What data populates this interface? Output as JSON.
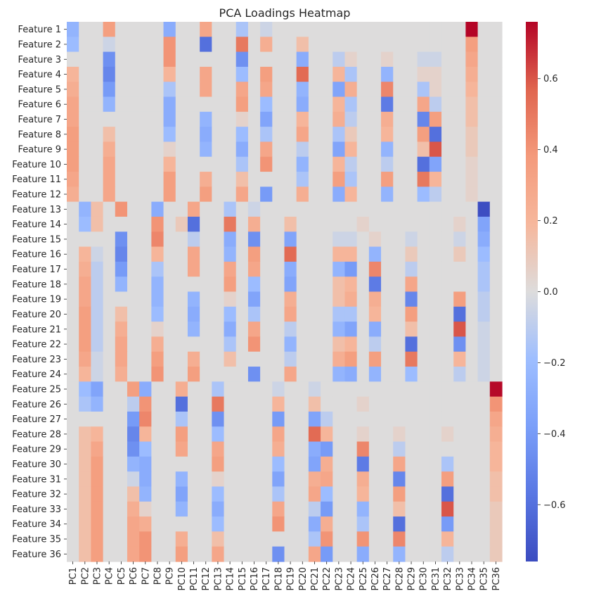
{
  "chart_data": {
    "type": "heatmap",
    "title": "PCA Loadings Heatmap",
    "xlabel": "",
    "ylabel": "",
    "colormap": "coolwarm",
    "vmin": -0.76,
    "vmax": 0.76,
    "colorbar_ticks": [
      0.6,
      0.4,
      0.2,
      0.0,
      -0.2,
      -0.4,
      -0.6
    ],
    "colorbar_tick_labels": [
      "0.6",
      "0.4",
      "0.2",
      "0.0",
      "−0.2",
      "−0.4",
      "−0.6"
    ],
    "x_labels": [
      "PC1",
      "PC2",
      "PC3",
      "PC4",
      "PC5",
      "PC6",
      "PC7",
      "PC8",
      "PC9",
      "PC10",
      "PC11",
      "PC12",
      "PC13",
      "PC14",
      "PC15",
      "PC16",
      "PC17",
      "PC18",
      "PC19",
      "PC20",
      "PC21",
      "PC22",
      "PC23",
      "PC24",
      "PC25",
      "PC26",
      "PC27",
      "PC28",
      "PC29",
      "PC30",
      "PC31",
      "PC32",
      "PC33",
      "PC34",
      "PC35",
      "PC36"
    ],
    "y_labels": [
      "Feature 1",
      "Feature 2",
      "Feature 3",
      "Feature 4",
      "Feature 5",
      "Feature 6",
      "Feature 7",
      "Feature 8",
      "Feature 9",
      "Feature 10",
      "Feature 11",
      "Feature 12",
      "Feature 13",
      "Feature 14",
      "Feature 15",
      "Feature 16",
      "Feature 17",
      "Feature 18",
      "Feature 19",
      "Feature 20",
      "Feature 21",
      "Feature 22",
      "Feature 23",
      "Feature 24",
      "Feature 25",
      "Feature 26",
      "Feature 27",
      "Feature 28",
      "Feature 29",
      "Feature 30",
      "Feature 31",
      "Feature 32",
      "Feature 33",
      "Feature 34",
      "Feature 35",
      "Feature 36"
    ],
    "values": [
      [
        -0.25,
        0,
        0,
        0.35,
        0,
        0,
        0,
        0,
        -0.3,
        0,
        0,
        0.3,
        0,
        0,
        -0.15,
        0,
        -0.05,
        0,
        0,
        0,
        0,
        0,
        0,
        0,
        0,
        0,
        0,
        0,
        0,
        0,
        0,
        0,
        0,
        0.76,
        0,
        0
      ],
      [
        -0.2,
        0,
        0,
        -0.05,
        0,
        0,
        0,
        0,
        0.4,
        0,
        0,
        -0.6,
        0,
        0,
        0.5,
        0,
        0.25,
        0,
        0,
        0.15,
        0,
        0,
        0,
        0,
        0,
        0,
        0,
        0,
        0,
        0,
        0,
        0,
        0,
        0.35,
        0,
        0
      ],
      [
        0,
        0,
        0,
        -0.45,
        0,
        0,
        0,
        0,
        0.4,
        0,
        0,
        0,
        0,
        0,
        -0.45,
        0,
        0,
        0,
        0,
        -0.3,
        0,
        0,
        -0.1,
        0.05,
        0,
        0,
        0.05,
        0,
        0,
        -0.05,
        -0.05,
        0,
        0,
        0.3,
        0,
        0
      ],
      [
        0.2,
        0,
        0,
        -0.5,
        0,
        0,
        0,
        0,
        0.2,
        0,
        0,
        0.3,
        0,
        0,
        -0.2,
        0,
        0.35,
        0,
        0,
        0.55,
        0,
        0,
        0.2,
        -0.15,
        0,
        0,
        -0.25,
        0,
        0,
        0.05,
        0.05,
        0,
        0,
        0.25,
        0,
        0
      ],
      [
        0.25,
        0,
        0,
        -0.4,
        0,
        0,
        0,
        0,
        -0.15,
        0,
        0,
        0.3,
        0,
        0,
        0.3,
        0,
        0.3,
        0,
        0,
        -0.25,
        0,
        0,
        -0.35,
        0.25,
        0,
        0,
        0.45,
        0,
        0,
        -0.15,
        0.05,
        0,
        0,
        0.2,
        0,
        0
      ],
      [
        0.3,
        0,
        0,
        -0.25,
        0,
        0,
        0,
        0,
        -0.3,
        0,
        0,
        0,
        0,
        0,
        0.35,
        0,
        -0.2,
        0,
        0,
        -0.3,
        0,
        0,
        0.2,
        -0.15,
        0,
        0,
        -0.55,
        0,
        0,
        0.3,
        -0.1,
        0,
        0,
        0.15,
        0,
        0
      ],
      [
        0.3,
        0,
        0,
        0,
        0,
        0,
        0,
        0,
        -0.3,
        0,
        0,
        -0.25,
        0,
        0,
        0.05,
        0,
        -0.35,
        0,
        0,
        0.2,
        0,
        0,
        0.25,
        -0.1,
        0,
        0,
        0.25,
        0,
        0,
        -0.5,
        0.35,
        0,
        0,
        0.15,
        0,
        0
      ],
      [
        0.35,
        0,
        0,
        0.15,
        0,
        0,
        0,
        0,
        -0.2,
        0,
        0,
        -0.3,
        0,
        0,
        -0.2,
        0,
        -0.15,
        0,
        0,
        0.3,
        0,
        0,
        -0.15,
        0.1,
        0,
        0,
        0.2,
        0,
        0,
        0.35,
        -0.6,
        0,
        0,
        0.1,
        0,
        0
      ],
      [
        0.35,
        0,
        0,
        0.25,
        0,
        0,
        0,
        0,
        0.05,
        0,
        0,
        -0.25,
        0,
        0,
        -0.3,
        0,
        0.3,
        0,
        0,
        -0.1,
        0,
        0,
        -0.35,
        0.2,
        0,
        0,
        -0.25,
        0,
        0,
        0.15,
        0.6,
        0,
        0,
        0.1,
        0,
        0
      ],
      [
        0.35,
        0,
        0,
        0.3,
        0,
        0,
        0,
        0,
        0.2,
        0,
        0,
        0,
        0,
        0,
        -0.15,
        0,
        0.4,
        0,
        0,
        -0.25,
        0,
        0,
        0.2,
        -0.1,
        0,
        0,
        -0.1,
        0,
        0,
        -0.6,
        -0.35,
        0,
        0,
        0.05,
        0,
        0
      ],
      [
        0.3,
        0,
        0,
        0.3,
        0,
        0,
        0,
        0,
        0.35,
        0,
        0,
        0.25,
        0,
        0,
        0.15,
        0,
        0,
        0,
        0,
        -0.15,
        0,
        0,
        0.35,
        -0.15,
        0,
        0,
        0.35,
        0,
        0,
        0.5,
        0.2,
        0,
        0,
        0.05,
        0,
        0
      ],
      [
        0.25,
        0,
        0,
        0.3,
        0,
        0,
        0,
        0,
        0.35,
        0,
        0,
        0.35,
        0,
        0,
        0.3,
        0,
        -0.4,
        0,
        0,
        0.25,
        0,
        0,
        -0.3,
        0.2,
        0,
        0,
        -0.25,
        0,
        0,
        -0.2,
        -0.1,
        0,
        0,
        0.05,
        0,
        0
      ],
      [
        0,
        -0.25,
        0.15,
        0,
        0.4,
        0,
        0,
        -0.3,
        0,
        0,
        0.3,
        0,
        0,
        -0.15,
        0,
        -0.05,
        0,
        0,
        0,
        0,
        0,
        0,
        0,
        0,
        0,
        0,
        0,
        0,
        0,
        0,
        0,
        0,
        0,
        0,
        -0.75,
        0
      ],
      [
        0,
        -0.2,
        0.15,
        0,
        0,
        0,
        0,
        0.4,
        0,
        0.1,
        -0.6,
        0,
        0,
        0.5,
        0,
        0.25,
        0,
        0,
        0.15,
        0,
        0,
        0,
        0,
        0,
        0.05,
        0,
        0,
        0,
        0,
        0,
        0,
        0,
        0.05,
        0,
        -0.35,
        0
      ],
      [
        0,
        0,
        0,
        0,
        -0.45,
        0,
        0,
        0.45,
        0,
        0,
        -0.1,
        0,
        0,
        -0.3,
        0,
        -0.45,
        0,
        0,
        -0.35,
        0,
        0,
        0,
        -0.05,
        -0.05,
        0,
        0.05,
        0,
        0,
        -0.05,
        0,
        0,
        0,
        -0.05,
        0,
        -0.3,
        0
      ],
      [
        0,
        0.2,
        -0.05,
        0,
        -0.5,
        0,
        0,
        0.2,
        0,
        0,
        0.3,
        0,
        0,
        -0.25,
        0,
        0.35,
        0,
        0,
        0.55,
        0,
        0,
        0,
        0.2,
        0.2,
        0,
        -0.25,
        0,
        0,
        0.1,
        0,
        0,
        0,
        0.1,
        0,
        -0.2,
        0
      ],
      [
        0,
        0.25,
        -0.1,
        0,
        -0.4,
        0,
        0,
        -0.15,
        0,
        0,
        0.3,
        0,
        0,
        0.3,
        0,
        0.3,
        0,
        0,
        -0.3,
        0,
        0,
        0,
        -0.25,
        -0.4,
        0,
        0.45,
        0,
        0,
        -0.1,
        0,
        0,
        0,
        0,
        0,
        -0.15,
        0
      ],
      [
        0,
        0.3,
        -0.1,
        0,
        -0.25,
        0,
        0,
        -0.25,
        0,
        0,
        0,
        0,
        0,
        0.35,
        0,
        -0.2,
        0,
        0,
        -0.35,
        0,
        0,
        0,
        0.15,
        0.2,
        0,
        -0.55,
        0,
        0,
        0.3,
        0,
        0,
        0,
        0,
        0,
        -0.15,
        0
      ],
      [
        0,
        0.3,
        -0.1,
        0,
        0,
        0,
        0,
        -0.25,
        0,
        0,
        -0.25,
        0,
        0,
        0.05,
        0,
        -0.35,
        0,
        0,
        0.25,
        0,
        0,
        0,
        0.15,
        0.25,
        0,
        0.25,
        0,
        0,
        -0.5,
        0,
        0,
        0,
        0.35,
        0,
        -0.1,
        0
      ],
      [
        0,
        0.35,
        -0.1,
        0,
        0.15,
        0,
        0,
        -0.2,
        0,
        0,
        -0.3,
        0,
        0,
        -0.2,
        0,
        -0.15,
        0,
        0,
        0.3,
        0,
        0,
        0,
        -0.15,
        -0.15,
        0,
        0.2,
        0,
        0,
        0.35,
        0,
        0,
        0,
        -0.6,
        0,
        -0.1,
        0
      ],
      [
        0,
        0.35,
        -0.1,
        0,
        0.25,
        0,
        0,
        0.05,
        0,
        0,
        -0.25,
        0,
        0,
        -0.3,
        0,
        0.3,
        0,
        0,
        -0.1,
        0,
        0,
        0,
        -0.25,
        -0.35,
        0,
        -0.3,
        0,
        0,
        0.15,
        0,
        0,
        0,
        0.6,
        0,
        -0.05,
        0
      ],
      [
        0,
        0.35,
        -0.1,
        0,
        0.3,
        0,
        0,
        0.25,
        0,
        0,
        0,
        0,
        0,
        -0.15,
        0,
        0.4,
        0,
        0,
        -0.25,
        0,
        0,
        0,
        0.15,
        0.2,
        0,
        -0.1,
        0,
        0,
        -0.6,
        0,
        0,
        0,
        -0.45,
        0,
        -0.05,
        0
      ],
      [
        0,
        0.3,
        -0.05,
        0,
        0.3,
        0,
        0,
        0.35,
        0,
        0,
        0.25,
        0,
        0,
        0.15,
        0,
        0,
        0,
        0,
        -0.1,
        0,
        0,
        0,
        0.25,
        0.35,
        0,
        0.35,
        0,
        0,
        0.5,
        0,
        0,
        0,
        0.2,
        0,
        -0.05,
        0
      ],
      [
        0,
        0.2,
        -0.05,
        0,
        0.25,
        0,
        0,
        0.4,
        0,
        0,
        0.35,
        0,
        0,
        0,
        0,
        -0.45,
        0,
        0,
        0.3,
        0,
        0,
        0,
        -0.25,
        -0.3,
        0,
        -0.25,
        0,
        0,
        -0.2,
        0,
        0,
        0,
        -0.1,
        0,
        -0.05,
        0
      ],
      [
        0,
        -0.2,
        -0.35,
        0,
        0,
        0.35,
        -0.3,
        0,
        0,
        0.25,
        0,
        0,
        -0.15,
        0,
        0,
        0,
        0,
        -0.05,
        0,
        0,
        -0.05,
        0,
        0,
        0,
        0,
        0,
        0,
        0,
        0,
        0,
        0,
        0,
        0,
        0,
        0,
        0.75
      ],
      [
        0,
        -0.15,
        -0.25,
        0,
        0,
        -0.1,
        0.4,
        0,
        0,
        -0.6,
        0,
        0,
        0.5,
        0,
        0,
        0,
        0,
        0.2,
        0,
        0,
        0.15,
        0,
        0,
        0,
        0.05,
        0,
        0,
        0,
        0,
        0,
        0,
        0,
        0,
        0,
        0,
        0.4
      ],
      [
        0,
        0,
        0,
        0,
        0,
        -0.4,
        0.45,
        0,
        0,
        -0.15,
        0,
        0,
        -0.45,
        0,
        0,
        0,
        0,
        -0.4,
        0,
        0,
        -0.35,
        -0.1,
        0,
        0,
        0,
        0,
        0,
        0,
        0,
        0,
        0,
        0,
        0,
        0,
        0,
        0.3
      ],
      [
        0,
        0.15,
        0.2,
        0,
        0,
        -0.5,
        0.2,
        0,
        0,
        0.35,
        0,
        0,
        -0.2,
        0,
        0,
        0,
        0,
        0.3,
        0,
        0,
        0.55,
        0.2,
        0,
        0,
        0.05,
        0,
        0,
        0.05,
        0,
        0,
        0,
        0.05,
        0,
        0,
        0,
        0.25
      ],
      [
        0,
        0.15,
        0.3,
        0,
        0,
        -0.45,
        -0.2,
        0,
        0,
        0.3,
        0,
        0,
        0.3,
        0,
        0,
        0,
        0,
        0.25,
        0,
        0,
        -0.3,
        -0.4,
        0,
        0,
        0.45,
        0,
        0,
        -0.1,
        0,
        0,
        0,
        0,
        0,
        0,
        0,
        0.2
      ],
      [
        0,
        0.15,
        0.35,
        0,
        0,
        -0.25,
        -0.3,
        0,
        0,
        0,
        0,
        0,
        0.35,
        0,
        0,
        0,
        0,
        -0.2,
        0,
        0,
        -0.35,
        0.25,
        0,
        0,
        -0.55,
        0,
        0,
        0.3,
        0,
        0,
        0,
        -0.15,
        0,
        0,
        0,
        0.2
      ],
      [
        0,
        0.15,
        0.35,
        0,
        0,
        -0.05,
        -0.3,
        0,
        0,
        -0.25,
        0,
        0,
        0.05,
        0,
        0,
        0,
        0,
        -0.35,
        0,
        0,
        0.25,
        0.3,
        0,
        0,
        0.25,
        0,
        0,
        -0.5,
        0,
        0,
        0,
        0.35,
        0,
        0,
        0,
        0.15
      ],
      [
        0,
        0.15,
        0.35,
        0,
        0,
        0.15,
        -0.25,
        0,
        0,
        -0.35,
        0,
        0,
        -0.2,
        0,
        0,
        0,
        0,
        -0.15,
        0,
        0,
        0.3,
        -0.2,
        0,
        0,
        0.2,
        0,
        0,
        0.35,
        0,
        0,
        0,
        -0.6,
        0,
        0,
        0,
        0.15
      ],
      [
        0,
        0.15,
        0.35,
        0,
        0,
        0.25,
        0.05,
        0,
        0,
        -0.25,
        0,
        0,
        -0.3,
        0,
        0,
        0,
        0,
        0.3,
        0,
        0,
        -0.1,
        -0.4,
        0,
        0,
        -0.25,
        0,
        0,
        0.15,
        0,
        0,
        0,
        0.6,
        0,
        0,
        0,
        0.1
      ],
      [
        0,
        0.15,
        0.35,
        0,
        0,
        0.3,
        0.25,
        0,
        0,
        0,
        0,
        0,
        -0.2,
        0,
        0,
        0,
        0,
        0.4,
        0,
        0,
        -0.3,
        0.25,
        0,
        0,
        -0.15,
        0,
        0,
        -0.6,
        0,
        0,
        0,
        -0.4,
        0,
        0,
        0,
        0.1
      ],
      [
        0,
        0.15,
        0.35,
        0,
        0,
        0.3,
        0.4,
        0,
        0,
        0.25,
        0,
        0,
        0.15,
        0,
        0,
        0,
        0,
        0,
        0,
        0,
        -0.15,
        0.4,
        0,
        0,
        0.4,
        0,
        0,
        0.45,
        0,
        0,
        0,
        0.2,
        0,
        0,
        0,
        0.1
      ],
      [
        0,
        0.15,
        0.35,
        0,
        0,
        0.3,
        0.4,
        0,
        0,
        0.35,
        0,
        0,
        0.3,
        0,
        0,
        0,
        0,
        -0.45,
        0,
        0,
        0.3,
        -0.4,
        0,
        0,
        -0.3,
        0,
        0,
        -0.25,
        0,
        0,
        0,
        -0.1,
        0,
        0,
        0,
        0.1
      ]
    ]
  }
}
